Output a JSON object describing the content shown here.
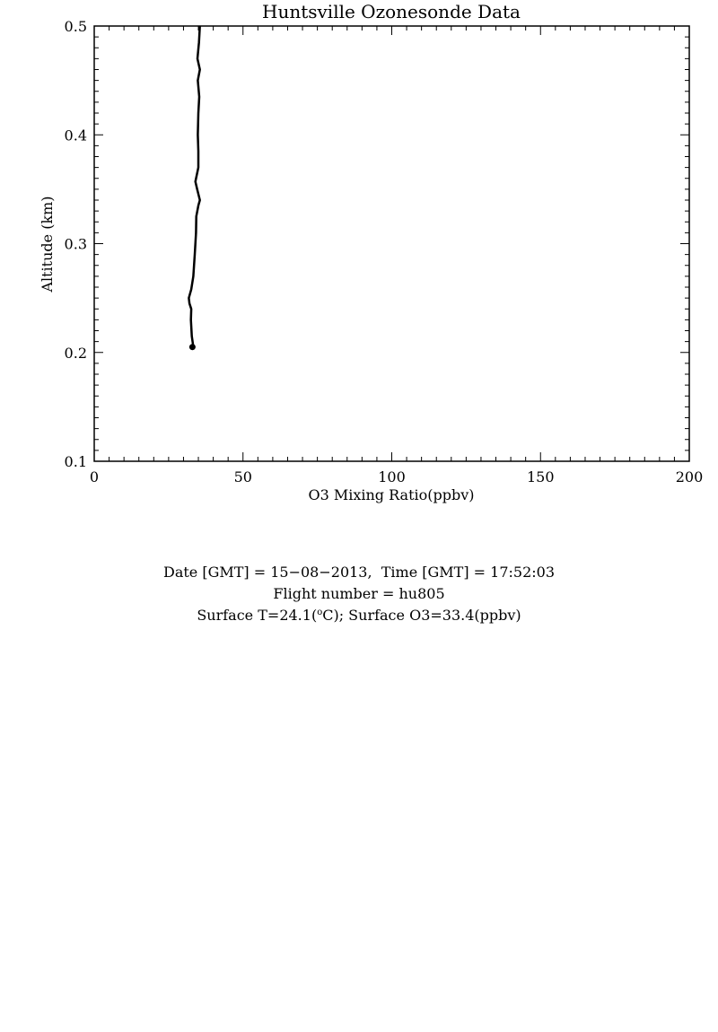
{
  "chart_data": {
    "type": "line",
    "title": "Huntsville Ozonesonde Data",
    "xlabel": "O3 Mixing Ratio(ppbv)",
    "ylabel": "Altitude (km)",
    "xlim": [
      0,
      200
    ],
    "ylim": [
      0.1,
      0.5
    ],
    "x_ticks": [
      "0",
      "50",
      "100",
      "150",
      "200"
    ],
    "y_ticks": [
      "0.1",
      "0.2",
      "0.3",
      "0.4",
      "0.5"
    ],
    "grid": false,
    "series": [
      {
        "color": "#000000",
        "points": [
          [
            33.0,
            0.205
          ],
          [
            33.2,
            0.207
          ],
          [
            32.8,
            0.215
          ],
          [
            32.5,
            0.23
          ],
          [
            32.6,
            0.24
          ],
          [
            32.0,
            0.245
          ],
          [
            31.8,
            0.25
          ],
          [
            32.6,
            0.258
          ],
          [
            33.3,
            0.27
          ],
          [
            33.8,
            0.29
          ],
          [
            34.2,
            0.31
          ],
          [
            34.3,
            0.325
          ],
          [
            35.0,
            0.335
          ],
          [
            35.5,
            0.34
          ],
          [
            34.6,
            0.35
          ],
          [
            34.0,
            0.357
          ],
          [
            35.0,
            0.37
          ],
          [
            35.0,
            0.385
          ],
          [
            34.8,
            0.4
          ],
          [
            35.0,
            0.42
          ],
          [
            35.3,
            0.435
          ],
          [
            34.8,
            0.45
          ],
          [
            35.5,
            0.46
          ],
          [
            34.7,
            0.47
          ],
          [
            35.2,
            0.485
          ],
          [
            35.5,
            0.5
          ]
        ]
      }
    ],
    "marker_point": [
      33.0,
      0.205
    ]
  },
  "info": {
    "date_line": "Date [GMT] = 15−08−2013,  Time [GMT] = 17:52:03",
    "flight_line": "Flight number = hu805",
    "surface_prefix": "Surface T=24.1(",
    "surface_sup": "o",
    "surface_suffix": "C); Surface O3=33.4(ppbv)"
  }
}
